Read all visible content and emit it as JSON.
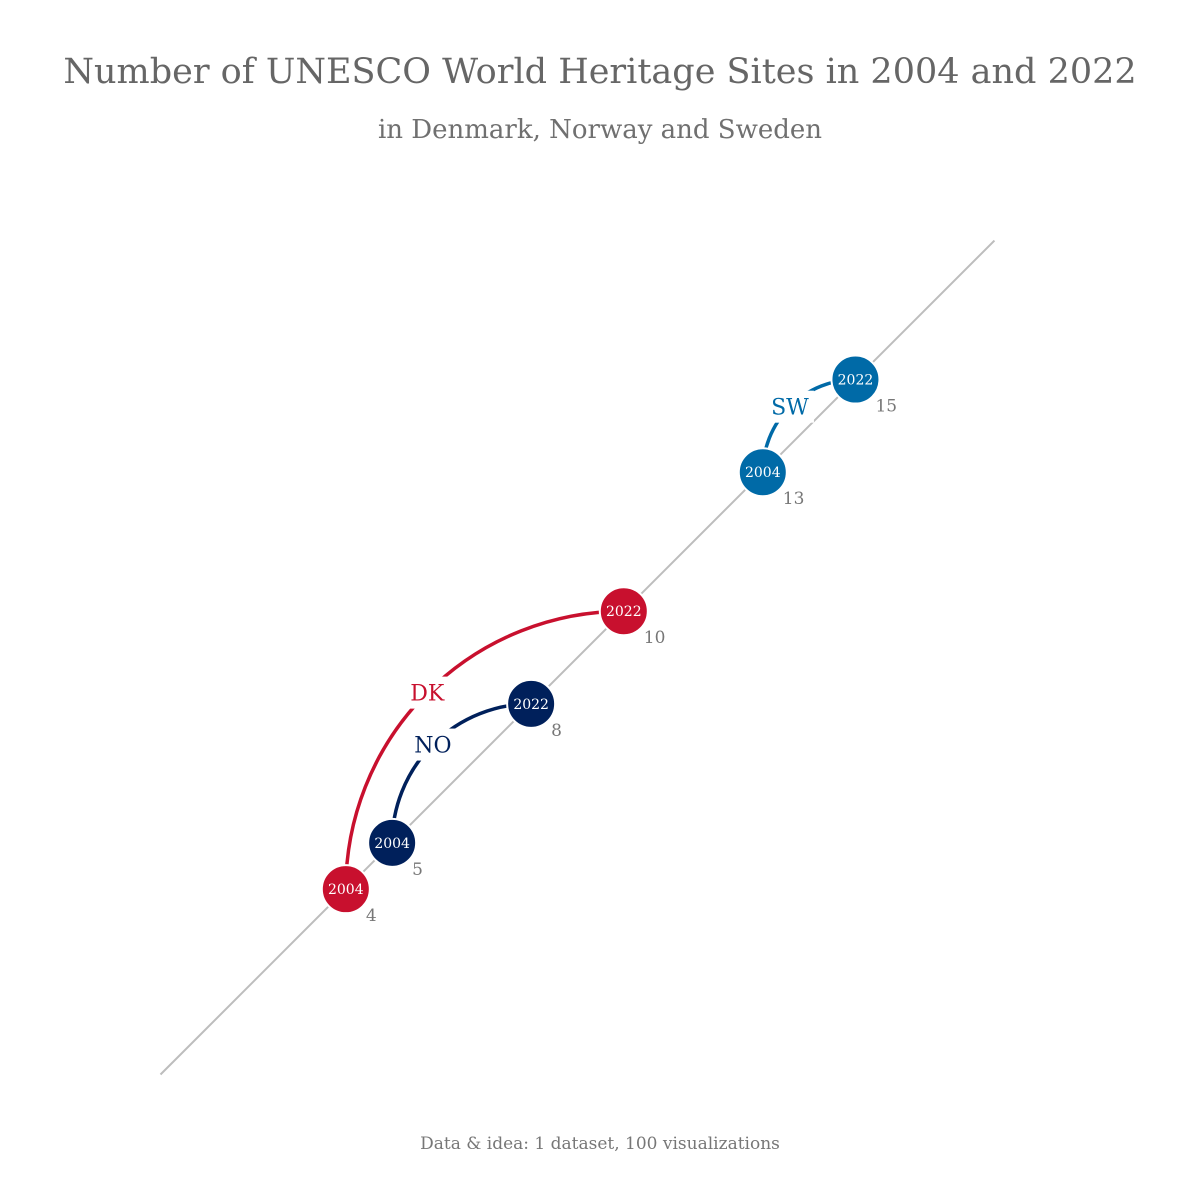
{
  "title": "Number of UNESCO World Heritage Sites in 2004 and 2022",
  "subtitle": "in Denmark, Norway and Sweden",
  "source": "Data & idea: 1 dataset, 100 visualizations",
  "chart_data": {
    "type": "scatter",
    "xlim": [
      0,
      18
    ],
    "series": [
      {
        "name": "DK",
        "color": "#c8102e",
        "values": [
          {
            "year": "2004",
            "sites": 4
          },
          {
            "year": "2022",
            "sites": 10
          }
        ]
      },
      {
        "name": "NO",
        "color": "#00205b",
        "values": [
          {
            "year": "2004",
            "sites": 5
          },
          {
            "year": "2022",
            "sites": 8
          }
        ]
      },
      {
        "name": "SW",
        "color": "#006aa7",
        "values": [
          {
            "year": "2004",
            "sites": 13
          },
          {
            "year": "2022",
            "sites": 15
          }
        ]
      }
    ]
  }
}
